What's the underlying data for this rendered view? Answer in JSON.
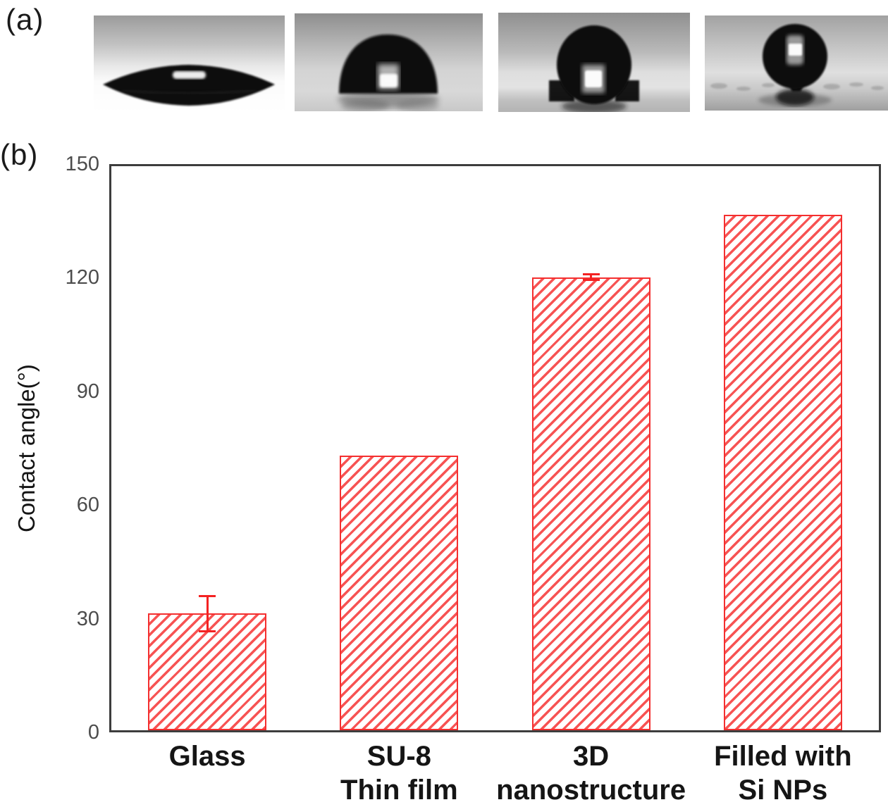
{
  "panels": {
    "a_label": "(a)",
    "b_label": "(b)"
  },
  "panel_a": {
    "images": [
      {
        "name": "contact-angle-photo-glass",
        "shape": "flat lens-shaped droplet"
      },
      {
        "name": "contact-angle-photo-su8-thin-film",
        "shape": "low dome droplet"
      },
      {
        "name": "contact-angle-photo-3d-nanostructure",
        "shape": "round ball droplet"
      },
      {
        "name": "contact-angle-photo-filled-si-nps",
        "shape": "near-spherical droplet"
      }
    ]
  },
  "chart_data": {
    "type": "bar",
    "categories": [
      "Glass",
      "SU-8\nThin film",
      "3D\nnanostructure",
      "Filled with\nSi NPs"
    ],
    "values": [
      31,
      73,
      120.5,
      137
    ],
    "errors": [
      5,
      0,
      1,
      0
    ],
    "title": "",
    "xlabel": "",
    "ylabel": "Contact angle(°)",
    "yticks": [
      0,
      30,
      60,
      90,
      120,
      150
    ],
    "ylim": [
      0,
      150
    ],
    "grid": false,
    "legend": "none",
    "bar_border_color": "#f42f2f",
    "hatch_color": "#f75353",
    "hatch_style": "diagonal-forward-slash",
    "axis_color": "#3d3d3d",
    "tick_label_color": "#4c4c4c",
    "category_label_color": "#151515"
  }
}
